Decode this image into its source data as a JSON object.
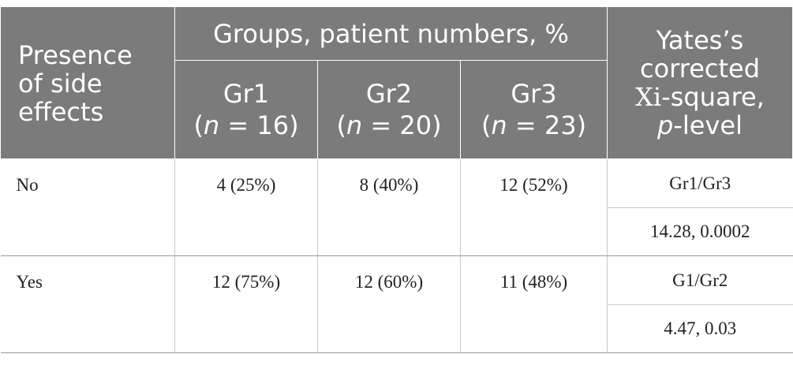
{
  "table": {
    "header": {
      "side_effects_label": [
        "Presence",
        "of side",
        "effects"
      ],
      "groups_label": "Groups, patient numbers, %",
      "yates_label": {
        "line1": "Yates’s",
        "line2": "corrected",
        "line3_xi": "Xi",
        "line3_rest": "-square,",
        "line4_p": "p",
        "line4_rest": "-level"
      },
      "groups": [
        {
          "name": "Gr1",
          "n_prefix": "(",
          "n_var": "n",
          "n_value": " = 16)"
        },
        {
          "name": "Gr2",
          "n_prefix": "(",
          "n_var": "n",
          "n_value": " = 20)"
        },
        {
          "name": "Gr3",
          "n_prefix": "(",
          "n_var": "n",
          "n_value": " = 23)"
        }
      ]
    },
    "rows": [
      {
        "label": "No",
        "values": [
          "4 (25%)",
          "8 (40%)",
          "12 (52%)"
        ],
        "comparison": "Gr1/Gr3",
        "stat": "14.28, 0.0002"
      },
      {
        "label": "Yes",
        "values": [
          "12 (75%)",
          "12 (60%)",
          "11 (48%)"
        ],
        "comparison": "G1/Gr2",
        "stat": "4.47, 0.03"
      }
    ]
  }
}
